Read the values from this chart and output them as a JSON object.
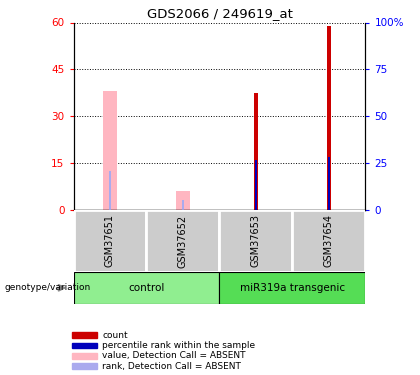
{
  "title": "GDS2066 / 249619_at",
  "samples": [
    "GSM37651",
    "GSM37652",
    "GSM37653",
    "GSM37654"
  ],
  "groups": [
    {
      "label": "control",
      "indices": [
        0,
        1
      ],
      "color": "#90EE90"
    },
    {
      "label": "miR319a transgenic",
      "indices": [
        2,
        3
      ],
      "color": "#55DD55"
    }
  ],
  "value_absent": [
    38.0,
    6.0,
    null,
    null
  ],
  "rank_absent": [
    21.0,
    5.5,
    null,
    null
  ],
  "count": [
    null,
    null,
    37.5,
    59.0
  ],
  "percentile_rank": [
    null,
    null,
    26.5,
    28.5
  ],
  "ylim_left": [
    0,
    60
  ],
  "ylim_right": [
    0,
    100
  ],
  "yticks_left": [
    0,
    15,
    30,
    45,
    60
  ],
  "yticks_right": [
    0,
    25,
    50,
    75,
    100
  ],
  "count_color": "#CC0000",
  "percentile_color": "#0000BB",
  "value_absent_color": "#FFB6C1",
  "rank_absent_color": "#AAAAEE",
  "group_label_text": "genotype/variation",
  "legend": [
    {
      "label": "count",
      "color": "#CC0000"
    },
    {
      "label": "percentile rank within the sample",
      "color": "#0000BB"
    },
    {
      "label": "value, Detection Call = ABSENT",
      "color": "#FFB6C1"
    },
    {
      "label": "rank, Detection Call = ABSENT",
      "color": "#AAAAEE"
    }
  ]
}
